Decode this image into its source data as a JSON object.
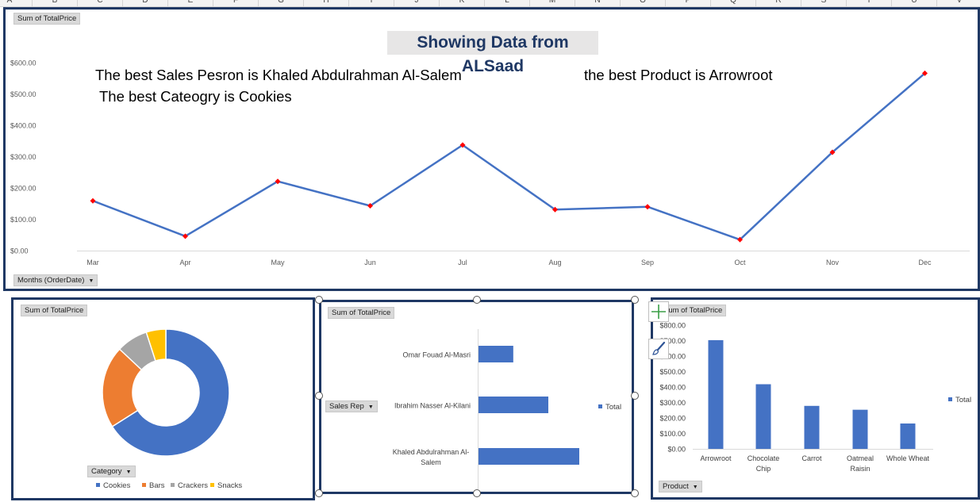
{
  "columns": [
    "A",
    "B",
    "C",
    "D",
    "E",
    "F",
    "G",
    "H",
    "I",
    "J",
    "K",
    "L",
    "M",
    "N",
    "O",
    "P",
    "Q",
    "R",
    "S",
    "T",
    "U",
    "V"
  ],
  "main": {
    "field_value": "Sum of TotalPrice",
    "title": "Showing Data from ALSaad",
    "insight_sales_person": "The best Sales Pesron is Khaled Abdulrahman Al-Salem",
    "insight_product": "the best Product is Arrowroot",
    "insight_category": "The best Cateogry is Cookies",
    "axis_field": "Months (OrderDate)",
    "line_color": "#4472c4",
    "marker_color": "#ff0000"
  },
  "donut": {
    "field_value": "Sum of TotalPrice",
    "legend_field": "Category"
  },
  "salesrep": {
    "field_value": "Sum of TotalPrice",
    "axis_field": "Sales Rep",
    "legend_label": "Total"
  },
  "product": {
    "field_value": "Sum of TotalPrice",
    "axis_field": "Product",
    "legend_label": "Total"
  },
  "chart_data": [
    {
      "type": "line",
      "title": "Showing Data from ALSaad",
      "x": [
        "Mar",
        "Apr",
        "May",
        "Jun",
        "Jul",
        "Aug",
        "Sep",
        "Oct",
        "Nov",
        "Dec"
      ],
      "series": [
        {
          "values": [
            159,
            46,
            221,
            143,
            337,
            131,
            140,
            35,
            314,
            566
          ]
        }
      ],
      "y_ticks": [
        "$0.00",
        "$100.00",
        "$200.00",
        "$300.00",
        "$400.00",
        "$500.00",
        "$600.00"
      ],
      "ylim": [
        0,
        600
      ],
      "grid": false,
      "legend": "none"
    },
    {
      "type": "pie",
      "donut": true,
      "categories": [
        "Cookies",
        "Bars",
        "Crackers",
        "Snacks"
      ],
      "values": [
        66,
        21,
        8,
        5
      ],
      "colors": [
        "#4472c4",
        "#ed7d31",
        "#a5a5a5",
        "#ffc000"
      ],
      "legend": "bottom"
    },
    {
      "type": "bar",
      "orientation": "horizontal",
      "categories": [
        "Omar Fouad Al-Masri",
        "Ibrahim Nasser Al-Kilani",
        "Khaled Abdulrahman Al-Salem"
      ],
      "series": [
        {
          "name": "Total",
          "values": [
            245,
            492,
            710
          ]
        }
      ],
      "legend": "right"
    },
    {
      "type": "bar",
      "categories": [
        "Arrowroot",
        "Chocolate Chip",
        "Carrot",
        "Oatmeal Raisin",
        "Whole Wheat"
      ],
      "series": [
        {
          "name": "Total",
          "values": [
            703,
            418,
            278,
            253,
            164
          ]
        }
      ],
      "y_ticks": [
        "$0.00",
        "$100.00",
        "$200.00",
        "$300.00",
        "$400.00",
        "$500.00",
        "$600.00",
        "$700.00",
        "$800.00"
      ],
      "ylim": [
        0,
        800
      ],
      "legend": "right"
    }
  ]
}
